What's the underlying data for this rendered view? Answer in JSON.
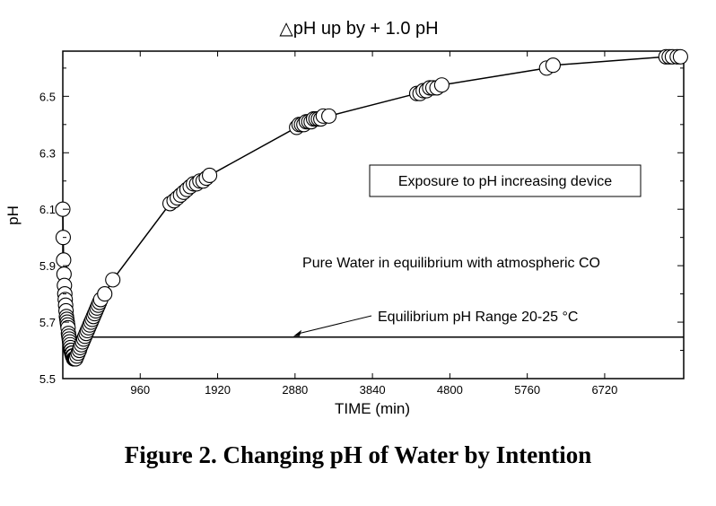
{
  "chart_data": {
    "type": "scatter",
    "title": "△pH  up by + 1.0 pH",
    "xlabel": "TIME (min)",
    "ylabel": "pH",
    "xlim": [
      0,
      7700
    ],
    "ylim": [
      5.5,
      6.66
    ],
    "xticks": [
      960,
      1920,
      2880,
      3840,
      4800,
      5760,
      6720
    ],
    "yticks": [
      5.5,
      5.7,
      5.9,
      6.1,
      6.3,
      6.5
    ],
    "ytick_labels": [
      "5.5",
      "5.7",
      "5.9",
      "6.1",
      "6.3",
      "6.5"
    ],
    "series": [
      {
        "name": "pH",
        "marker": "open-circle",
        "line": true,
        "x": [
          0,
          5,
          10,
          15,
          20,
          25,
          30,
          35,
          40,
          45,
          50,
          55,
          60,
          65,
          70,
          75,
          80,
          85,
          90,
          95,
          100,
          105,
          110,
          115,
          120,
          125,
          130,
          135,
          140,
          145,
          150,
          155,
          160,
          175,
          190,
          205,
          215,
          230,
          245,
          260,
          275,
          290,
          305,
          320,
          335,
          350,
          365,
          380,
          395,
          410,
          425,
          440,
          455,
          470,
          520,
          620,
          1330,
          1380,
          1420,
          1460,
          1500,
          1540,
          1580,
          1620,
          1660,
          1700,
          1740,
          1780,
          1820,
          2900,
          2930,
          2960,
          2990,
          3020,
          3050,
          3080,
          3110,
          3140,
          3170,
          3200,
          3230,
          3300,
          4390,
          4430,
          4470,
          4510,
          4550,
          4590,
          4640,
          4700,
          6000,
          6080,
          7480,
          7520,
          7560,
          7620,
          7660
        ],
        "y": [
          6.1,
          6.0,
          5.92,
          5.87,
          5.83,
          5.8,
          5.78,
          5.76,
          5.74,
          5.72,
          5.71,
          5.7,
          5.69,
          5.68,
          5.66,
          5.65,
          5.64,
          5.63,
          5.62,
          5.61,
          5.6,
          5.6,
          5.59,
          5.59,
          5.58,
          5.58,
          5.58,
          5.57,
          5.57,
          5.57,
          5.57,
          5.57,
          5.57,
          5.58,
          5.59,
          5.6,
          5.61,
          5.62,
          5.63,
          5.64,
          5.65,
          5.66,
          5.67,
          5.68,
          5.69,
          5.7,
          5.71,
          5.72,
          5.73,
          5.74,
          5.75,
          5.76,
          5.77,
          5.78,
          5.8,
          5.85,
          6.12,
          6.13,
          6.14,
          6.15,
          6.16,
          6.17,
          6.18,
          6.19,
          6.19,
          6.2,
          6.2,
          6.21,
          6.22,
          6.39,
          6.4,
          6.4,
          6.4,
          6.41,
          6.41,
          6.41,
          6.42,
          6.42,
          6.42,
          6.42,
          6.43,
          6.43,
          6.51,
          6.51,
          6.52,
          6.52,
          6.53,
          6.53,
          6.53,
          6.54,
          6.6,
          6.61,
          6.64,
          6.64,
          6.64,
          6.64,
          6.64
        ]
      }
    ],
    "reference_line": {
      "y": 5.647,
      "label": "Equilibrium pH Range 20-25 °C"
    },
    "annotations": [
      {
        "text": "Exposure to pH increasing device",
        "boxed": true
      },
      {
        "text": "Pure Water in equilibrium with atmospheric CO",
        "boxed": false
      }
    ]
  },
  "caption": "Figure 2. Changing pH of Water by Intention"
}
